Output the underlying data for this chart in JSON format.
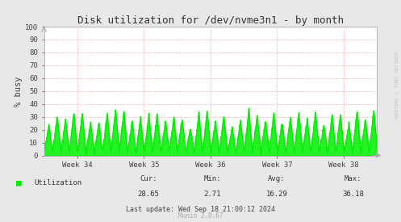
{
  "title": "Disk utilization for /dev/nvme3n1 - by month",
  "ylabel": "% busy",
  "bg_color": "#e8e8e8",
  "plot_bg_color": "#ffffff",
  "grid_color": "#ff9999",
  "line_color": "#00ee00",
  "fill_color": "#00ee00",
  "ylim": [
    0,
    100
  ],
  "yticks": [
    0,
    10,
    20,
    30,
    40,
    50,
    60,
    70,
    80,
    90,
    100
  ],
  "xtick_labels": [
    "Week 34",
    "Week 35",
    "Week 36",
    "Week 37",
    "Week 38"
  ],
  "legend_label": "Utilization",
  "cur_val": "28.65",
  "min_val": "2.71",
  "avg_val": "16.29",
  "max_val": "36.18",
  "last_update": "Last update: Wed Sep 18 21:00:12 2024",
  "munin_version": "Munin 2.0.67",
  "watermark": "RRDTOOL / TOBI OETIKER",
  "num_cycles": 40,
  "min_val_num": 2.71,
  "max_val_num": 36.18,
  "avg_val_num": 16.29
}
